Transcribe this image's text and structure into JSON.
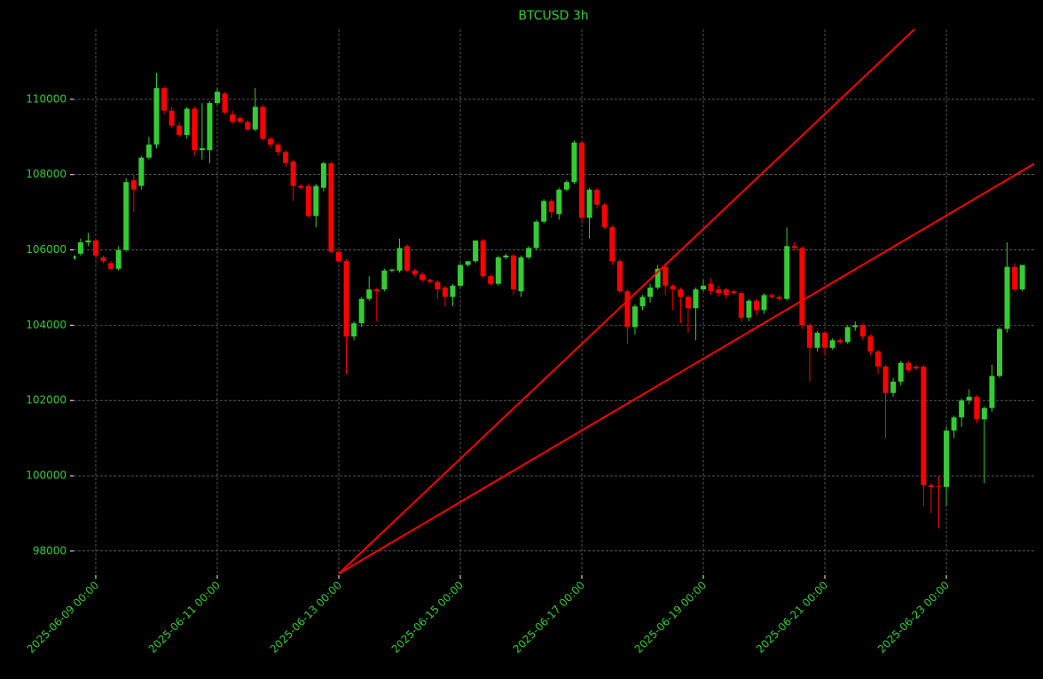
{
  "chart_data": {
    "type": "candlestick",
    "title": "BTCUSD 3h",
    "x": [
      "2025-06-08 15:00",
      "2025-06-08 18:00",
      "2025-06-08 21:00",
      "2025-06-09 00:00",
      "2025-06-09 03:00",
      "2025-06-09 06:00",
      "2025-06-09 09:00",
      "2025-06-09 12:00",
      "2025-06-09 15:00",
      "2025-06-09 18:00",
      "2025-06-09 21:00",
      "2025-06-10 00:00",
      "2025-06-10 03:00",
      "2025-06-10 06:00",
      "2025-06-10 09:00",
      "2025-06-10 12:00",
      "2025-06-10 15:00",
      "2025-06-10 18:00",
      "2025-06-10 21:00",
      "2025-06-11 00:00",
      "2025-06-11 03:00",
      "2025-06-11 06:00",
      "2025-06-11 09:00",
      "2025-06-11 12:00",
      "2025-06-11 15:00",
      "2025-06-11 18:00",
      "2025-06-11 21:00",
      "2025-06-12 00:00",
      "2025-06-12 03:00",
      "2025-06-12 06:00",
      "2025-06-12 09:00",
      "2025-06-12 12:00",
      "2025-06-12 15:00",
      "2025-06-12 18:00",
      "2025-06-12 21:00",
      "2025-06-13 00:00",
      "2025-06-13 03:00",
      "2025-06-13 06:00",
      "2025-06-13 09:00",
      "2025-06-13 12:00",
      "2025-06-13 15:00",
      "2025-06-13 18:00",
      "2025-06-13 21:00",
      "2025-06-14 00:00",
      "2025-06-14 03:00",
      "2025-06-14 06:00",
      "2025-06-14 09:00",
      "2025-06-14 12:00",
      "2025-06-14 15:00",
      "2025-06-14 18:00",
      "2025-06-14 21:00",
      "2025-06-15 00:00",
      "2025-06-15 03:00",
      "2025-06-15 06:00",
      "2025-06-15 09:00",
      "2025-06-15 12:00",
      "2025-06-15 15:00",
      "2025-06-15 18:00",
      "2025-06-15 21:00",
      "2025-06-16 00:00",
      "2025-06-16 03:00",
      "2025-06-16 06:00",
      "2025-06-16 09:00",
      "2025-06-16 12:00",
      "2025-06-16 15:00",
      "2025-06-16 18:00",
      "2025-06-16 21:00",
      "2025-06-17 00:00",
      "2025-06-17 03:00",
      "2025-06-17 06:00",
      "2025-06-17 09:00",
      "2025-06-17 12:00",
      "2025-06-17 15:00",
      "2025-06-17 18:00",
      "2025-06-17 21:00",
      "2025-06-18 00:00",
      "2025-06-18 03:00",
      "2025-06-18 06:00",
      "2025-06-18 09:00",
      "2025-06-18 12:00",
      "2025-06-18 15:00",
      "2025-06-18 18:00",
      "2025-06-18 21:00",
      "2025-06-19 00:00",
      "2025-06-19 03:00",
      "2025-06-19 06:00",
      "2025-06-19 09:00",
      "2025-06-19 12:00",
      "2025-06-19 15:00",
      "2025-06-19 18:00",
      "2025-06-19 21:00",
      "2025-06-20 00:00",
      "2025-06-20 03:00",
      "2025-06-20 06:00",
      "2025-06-20 09:00",
      "2025-06-20 12:00",
      "2025-06-20 15:00",
      "2025-06-20 18:00",
      "2025-06-20 21:00",
      "2025-06-21 00:00",
      "2025-06-21 03:00",
      "2025-06-21 06:00",
      "2025-06-21 09:00",
      "2025-06-21 12:00",
      "2025-06-21 15:00",
      "2025-06-21 18:00",
      "2025-06-21 21:00",
      "2025-06-22 00:00",
      "2025-06-22 03:00",
      "2025-06-22 06:00",
      "2025-06-22 09:00",
      "2025-06-22 12:00",
      "2025-06-22 15:00",
      "2025-06-22 18:00",
      "2025-06-22 21:00",
      "2025-06-23 00:00",
      "2025-06-23 03:00",
      "2025-06-23 06:00",
      "2025-06-23 09:00",
      "2025-06-23 12:00",
      "2025-06-23 15:00",
      "2025-06-23 18:00",
      "2025-06-23 21:00",
      "2025-06-24 00:00",
      "2025-06-24 03:00",
      "2025-06-24 06:00"
    ],
    "open": [
      105750,
      105900,
      106200,
      106250,
      105800,
      105650,
      105500,
      106000,
      107850,
      107700,
      108450,
      108800,
      110300,
      109700,
      109300,
      109050,
      109750,
      108650,
      108650,
      109900,
      110150,
      109600,
      109500,
      109400,
      109200,
      109800,
      108950,
      108800,
      108600,
      108350,
      107700,
      107700,
      106900,
      107650,
      108300,
      105950,
      105700,
      103700,
      104050,
      104700,
      104950,
      104950,
      105450,
      105450,
      106100,
      105450,
      105350,
      105200,
      105150,
      105000,
      104750,
      105050,
      105600,
      105700,
      106250,
      105300,
      105100,
      105800,
      105850,
      104900,
      105800,
      106050,
      106750,
      107300,
      106950,
      107600,
      107800,
      108850,
      106850,
      107600,
      107200,
      106600,
      105700,
      104900,
      103950,
      104500,
      104750,
      105000,
      105550,
      105050,
      104950,
      104750,
      104450,
      104950,
      105100,
      104950,
      104950,
      104900,
      104850,
      104200,
      104650,
      104400,
      104800,
      104750,
      104700,
      106100,
      106050,
      104000,
      103400,
      103800,
      103400,
      103600,
      103550,
      103950,
      104000,
      103700,
      103300,
      102900,
      102200,
      102500,
      103000,
      102900,
      102900,
      99750,
      99720,
      99700,
      101200,
      101550,
      102000,
      102100,
      101500,
      101800,
      102650,
      103900,
      105550,
      104950
    ],
    "high": [
      105900,
      106300,
      106450,
      106300,
      105850,
      105700,
      106100,
      107900,
      108000,
      108500,
      109000,
      110700,
      110350,
      109800,
      109400,
      109800,
      109800,
      109900,
      109950,
      110300,
      110200,
      109700,
      109550,
      109450,
      110300,
      109850,
      109000,
      108850,
      108650,
      108400,
      107750,
      107750,
      107750,
      108350,
      108350,
      106000,
      105750,
      104100,
      104750,
      105300,
      105000,
      105500,
      105500,
      106300,
      106150,
      105500,
      105400,
      105250,
      105200,
      105050,
      105100,
      105650,
      105700,
      106250,
      106300,
      105350,
      105850,
      105900,
      105900,
      105850,
      106100,
      106800,
      107350,
      107350,
      107650,
      107850,
      108900,
      108900,
      107650,
      107650,
      107250,
      106650,
      105750,
      104950,
      104550,
      104800,
      105100,
      105600,
      105650,
      105100,
      105000,
      104800,
      105000,
      105200,
      105250,
      105050,
      105000,
      104950,
      104900,
      104700,
      104700,
      104850,
      104850,
      104800,
      106600,
      106200,
      106100,
      104050,
      103850,
      103850,
      103650,
      103650,
      104000,
      104100,
      104050,
      103750,
      103350,
      102950,
      102600,
      103050,
      103050,
      102950,
      102950,
      99800,
      100000,
      101300,
      101600,
      102050,
      102300,
      102150,
      101850,
      102950,
      103950,
      106200,
      105650,
      105600
    ],
    "low": [
      105700,
      105850,
      106100,
      105750,
      105650,
      105450,
      105450,
      105950,
      107000,
      107600,
      108400,
      108700,
      109600,
      109250,
      109000,
      108950,
      108500,
      108400,
      108300,
      109850,
      109600,
      109350,
      109350,
      109150,
      109150,
      108900,
      108700,
      108500,
      108200,
      107300,
      107600,
      106850,
      106600,
      107550,
      105900,
      105650,
      102700,
      103600,
      103950,
      104650,
      104100,
      104900,
      105400,
      105400,
      105400,
      105300,
      105150,
      105100,
      104700,
      104500,
      104500,
      105000,
      105550,
      105650,
      105250,
      105050,
      105050,
      105750,
      104800,
      104750,
      105750,
      106000,
      106700,
      106850,
      106800,
      107550,
      107750,
      106700,
      106300,
      107100,
      106550,
      105600,
      104850,
      103500,
      103750,
      104400,
      104600,
      104950,
      104800,
      104400,
      104050,
      103800,
      103600,
      104900,
      104800,
      104750,
      104700,
      104800,
      104100,
      104100,
      104250,
      104300,
      104700,
      104650,
      104650,
      106000,
      103900,
      102500,
      103300,
      103200,
      103350,
      103500,
      103500,
      103850,
      103600,
      103200,
      102700,
      101000,
      102100,
      102400,
      102750,
      102800,
      99200,
      99000,
      98600,
      99200,
      101000,
      101300,
      101900,
      101400,
      99800,
      101700,
      102600,
      103800,
      104900,
      104900
    ],
    "close": [
      105850,
      106200,
      106250,
      105850,
      105700,
      105500,
      106000,
      107800,
      107600,
      108450,
      108800,
      110300,
      109700,
      109300,
      109050,
      109750,
      108650,
      108700,
      109900,
      110200,
      109650,
      109400,
      109400,
      109200,
      109800,
      108950,
      108800,
      108600,
      108300,
      107700,
      107650,
      106900,
      107700,
      108300,
      105950,
      105700,
      103700,
      104050,
      104700,
      104950,
      104900,
      105450,
      105480,
      106050,
      105450,
      105350,
      105200,
      105150,
      104950,
      104750,
      105050,
      105600,
      105700,
      106250,
      105300,
      105100,
      105800,
      105850,
      104950,
      105800,
      106050,
      106750,
      107300,
      107000,
      107600,
      107800,
      108850,
      106850,
      107600,
      107200,
      106600,
      105700,
      104900,
      103950,
      104500,
      104750,
      105000,
      105500,
      105050,
      104950,
      104750,
      104450,
      104950,
      105050,
      104900,
      104850,
      104800,
      104850,
      104200,
      104650,
      104400,
      104800,
      104750,
      104700,
      106100,
      106050,
      104000,
      103400,
      103800,
      103400,
      103600,
      103550,
      103950,
      104000,
      103700,
      103300,
      102900,
      102200,
      102500,
      103000,
      102800,
      102850,
      99750,
      99700,
      99700,
      101200,
      101550,
      102000,
      102100,
      101500,
      101800,
      102650,
      103900,
      105550,
      104950,
      105600
    ],
    "up_color": "#32cd32",
    "down_color": "#ff0000",
    "trend_lines": [
      {
        "color": "#ff0000",
        "x": [
          "2025-06-13 00:00",
          "2025-06-22 12:00"
        ],
        "values": [
          97400,
          111900
        ]
      },
      {
        "color": "#ff0000",
        "x": [
          "2025-06-13 00:00",
          "2025-06-24 12:00"
        ],
        "values": [
          97400,
          108340
        ]
      }
    ],
    "xlim": [
      "2025-06-08 15:15",
      "2025-06-24 10:40"
    ],
    "xticks": [
      "2025-06-09 00:00",
      "2025-06-11 00:00",
      "2025-06-13 00:00",
      "2025-06-15 00:00",
      "2025-06-17 00:00",
      "2025-06-19 00:00",
      "2025-06-21 00:00",
      "2025-06-23 00:00"
    ],
    "ylim": [
      97360,
      111860
    ],
    "yticks": [
      98000,
      100000,
      102000,
      104000,
      106000,
      108000,
      110000
    ],
    "grid": true
  }
}
